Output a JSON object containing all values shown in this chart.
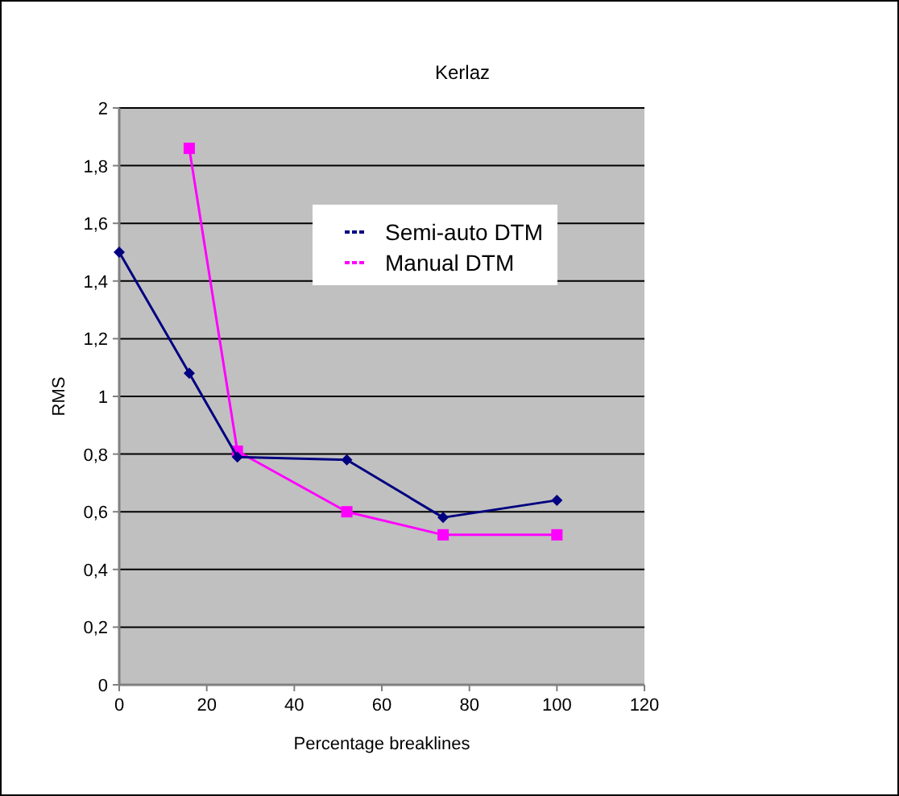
{
  "chart_data": {
    "type": "line",
    "title": "Kerlaz",
    "xlabel": "Percentage breaklines",
    "ylabel": "RMS",
    "xlim": [
      0,
      120
    ],
    "xticks": [
      0,
      20,
      40,
      60,
      80,
      100,
      120
    ],
    "ylim": [
      0,
      2
    ],
    "yticks": [
      0,
      {
        "value": 0.2,
        "label": "0,2"
      },
      {
        "value": 0.4,
        "label": "0,4"
      },
      {
        "value": 0.6,
        "label": "0,6"
      },
      {
        "value": 0.8,
        "label": "0,8"
      },
      1,
      {
        "value": 1.2,
        "label": "1,2"
      },
      {
        "value": 1.4,
        "label": "1,4"
      },
      {
        "value": 1.6,
        "label": "1,6"
      },
      {
        "value": 1.8,
        "label": "1,8"
      },
      2
    ],
    "grid": "y",
    "legend": "top right",
    "series": [
      {
        "name": "Semi-auto DTM",
        "color": "#000080",
        "marker": "diamond",
        "x": [
          0,
          16,
          27,
          52,
          74,
          100
        ],
        "values": [
          1.5,
          1.08,
          0.79,
          0.78,
          0.58,
          0.64
        ]
      },
      {
        "name": "Manual DTM",
        "color": "#ff00ff",
        "marker": "square",
        "x": [
          16,
          27,
          52,
          74,
          100
        ],
        "values": [
          1.86,
          0.81,
          0.6,
          0.52,
          0.52
        ]
      }
    ]
  }
}
